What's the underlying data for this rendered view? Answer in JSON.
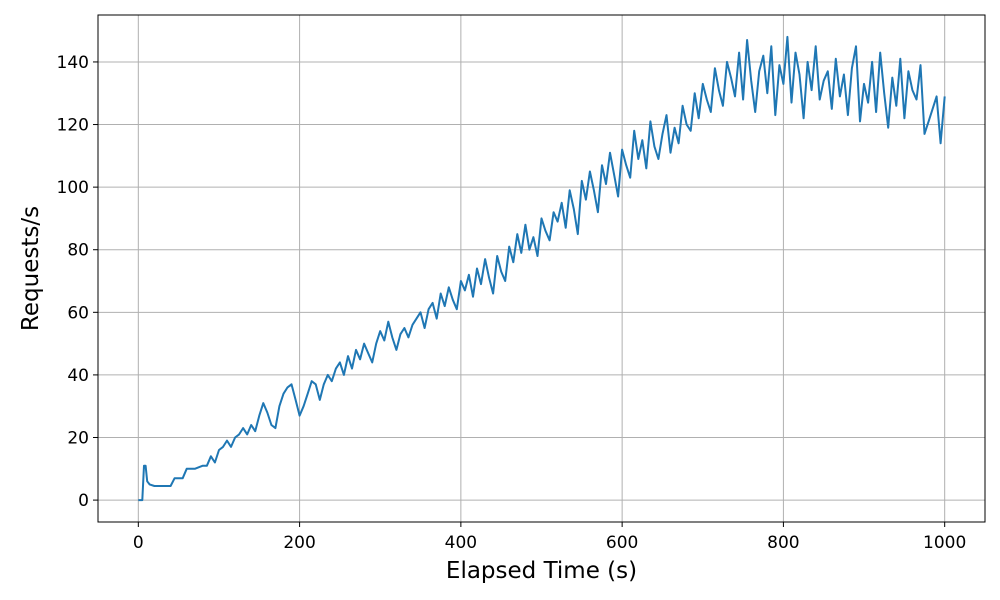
{
  "chart_data": {
    "type": "line",
    "xlabel": "Elapsed Time (s)",
    "ylabel": "Requests/s",
    "xlim": [
      -50,
      1050
    ],
    "ylim": [
      -7,
      155
    ],
    "grid": true,
    "x_ticks": [
      0,
      200,
      400,
      600,
      800,
      1000
    ],
    "y_ticks": [
      0,
      20,
      40,
      60,
      80,
      100,
      120,
      140
    ],
    "series_color": "#1f77b4",
    "series": [
      {
        "x": [
          0,
          5,
          7,
          9,
          11,
          14,
          20,
          30,
          40,
          45,
          50,
          55,
          60,
          70,
          80,
          85,
          90,
          95,
          100,
          105,
          110,
          115,
          120,
          125,
          130,
          135,
          140,
          145,
          150,
          155,
          160,
          165,
          170,
          175,
          180,
          185,
          190,
          195,
          200,
          205,
          210,
          215,
          220,
          225,
          230,
          235,
          240,
          245,
          250,
          255,
          260,
          265,
          270,
          275,
          280,
          285,
          290,
          295,
          300,
          305,
          310,
          315,
          320,
          325,
          330,
          335,
          340,
          345,
          350,
          355,
          360,
          365,
          370,
          375,
          380,
          385,
          390,
          395,
          400,
          405,
          410,
          415,
          420,
          425,
          430,
          435,
          440,
          445,
          450,
          455,
          460,
          465,
          470,
          475,
          480,
          485,
          490,
          495,
          500,
          505,
          510,
          515,
          520,
          525,
          530,
          535,
          540,
          545,
          550,
          555,
          560,
          565,
          570,
          575,
          580,
          585,
          590,
          595,
          600,
          605,
          610,
          615,
          620,
          625,
          630,
          635,
          640,
          645,
          650,
          655,
          660,
          665,
          670,
          675,
          680,
          685,
          690,
          695,
          700,
          705,
          710,
          715,
          720,
          725,
          730,
          735,
          740,
          745,
          750,
          755,
          760,
          765,
          770,
          775,
          780,
          785,
          790,
          795,
          800,
          805,
          810,
          815,
          820,
          825,
          830,
          835,
          840,
          845,
          850,
          855,
          860,
          865,
          870,
          875,
          880,
          885,
          890,
          895,
          900,
          905,
          910,
          915,
          920,
          925,
          930,
          935,
          940,
          945,
          950,
          955,
          960,
          965,
          970,
          975,
          980,
          985,
          990,
          995,
          1000
        ],
        "y": [
          0,
          0,
          11,
          11,
          6,
          5,
          4.5,
          4.5,
          4.5,
          7,
          7,
          7,
          10,
          10,
          11,
          11,
          14,
          12,
          16,
          17,
          19,
          17,
          20,
          21,
          23,
          21,
          24,
          22,
          27,
          31,
          28,
          24,
          23,
          30,
          34,
          36,
          37,
          32,
          27,
          30,
          34,
          38,
          37,
          32,
          37,
          40,
          38,
          42,
          44,
          40,
          46,
          42,
          48,
          45,
          50,
          47,
          44,
          50,
          54,
          51,
          57,
          52,
          48,
          53,
          55,
          52,
          56,
          58,
          60,
          55,
          61,
          63,
          58,
          66,
          62,
          68,
          64,
          61,
          70,
          67,
          72,
          65,
          74,
          69,
          77,
          71,
          66,
          78,
          73,
          70,
          81,
          76,
          85,
          79,
          88,
          80,
          84,
          78,
          90,
          86,
          83,
          92,
          89,
          95,
          87,
          99,
          93,
          85,
          102,
          96,
          105,
          99,
          92,
          107,
          101,
          111,
          104,
          97,
          112,
          107,
          103,
          118,
          109,
          115,
          106,
          121,
          113,
          109,
          117,
          123,
          111,
          119,
          114,
          126,
          120,
          118,
          130,
          122,
          133,
          128,
          124,
          138,
          131,
          126,
          140,
          135,
          129,
          143,
          128,
          147,
          134,
          124,
          137,
          142,
          130,
          145,
          123,
          139,
          133,
          148,
          127,
          143,
          136,
          122,
          140,
          131,
          145,
          128,
          134,
          137,
          125,
          141,
          129,
          136,
          123,
          138,
          145,
          121,
          133,
          127,
          140,
          124,
          143,
          130,
          119,
          135,
          126,
          141,
          122,
          137,
          131,
          128,
          139,
          117,
          121,
          125,
          129,
          114,
          129
        ]
      }
    ]
  }
}
